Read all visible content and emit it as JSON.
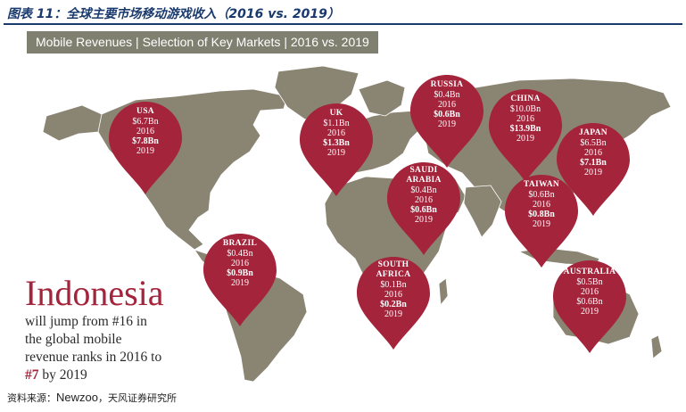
{
  "figure": {
    "title": "图表 11：全球主要市场移动游戏收入（2016 vs. 2019）",
    "banner": "Mobile Revenues | Selection of Key Markets | 2016 vs. 2019",
    "source_prefix": "资料来源：",
    "source_brand": "Newzoo",
    "source_suffix": "，天风证券研究所"
  },
  "colors": {
    "pin": "#a3243b",
    "land": "#8a8472",
    "banner": "#808070",
    "title": "#1a3a6e"
  },
  "markets": [
    {
      "name": "USA",
      "v2016": "$6.7Bn",
      "y2016": "2016",
      "v2019": "$7.8Bn",
      "y2019": "2019"
    },
    {
      "name": "UK",
      "v2016": "$1.1Bn",
      "y2016": "2016",
      "v2019": "$1.3Bn",
      "y2019": "2019"
    },
    {
      "name": "RUSSIA",
      "v2016": "$0.4Bn",
      "y2016": "2016",
      "v2019": "$0.6Bn",
      "y2019": "2019"
    },
    {
      "name": "CHINA",
      "v2016": "$10.0Bn",
      "y2016": "2016",
      "v2019": "$13.9Bn",
      "y2019": "2019"
    },
    {
      "name": "JAPAN",
      "v2016": "$6.5Bn",
      "y2016": "2016",
      "v2019": "$7.1Bn",
      "y2019": "2019"
    },
    {
      "name_line1": "SAUDI",
      "name_line2": "ARABIA",
      "v2016": "$0.4Bn",
      "y2016": "2016",
      "v2019": "$0.6Bn",
      "y2019": "2019"
    },
    {
      "name": "TAIWAN",
      "v2016": "$0.6Bn",
      "y2016": "2016",
      "v2019": "$0.8Bn",
      "y2019": "2019"
    },
    {
      "name": "BRAZIL",
      "v2016": "$0.4Bn",
      "y2016": "2016",
      "v2019": "$0.9Bn",
      "y2019": "2019"
    },
    {
      "name_line1": "SOUTH",
      "name_line2": "AFRICA",
      "v2016": "$0.1Bn",
      "y2016": "2016",
      "v2019": "$0.2Bn",
      "y2019": "2019"
    },
    {
      "name": "AUSTRALIA",
      "v2016": "$0.5Bn",
      "y2016": "2016",
      "v2019": "$0.6Bn",
      "y2019": "2019"
    }
  ],
  "callout": {
    "headline": "Indonesia",
    "line1": "will jump from #16 in",
    "line2": "the global mobile",
    "line3": "revenue ranks in 2016 to",
    "rank": "#7",
    "line4_suffix": " by 2019"
  }
}
